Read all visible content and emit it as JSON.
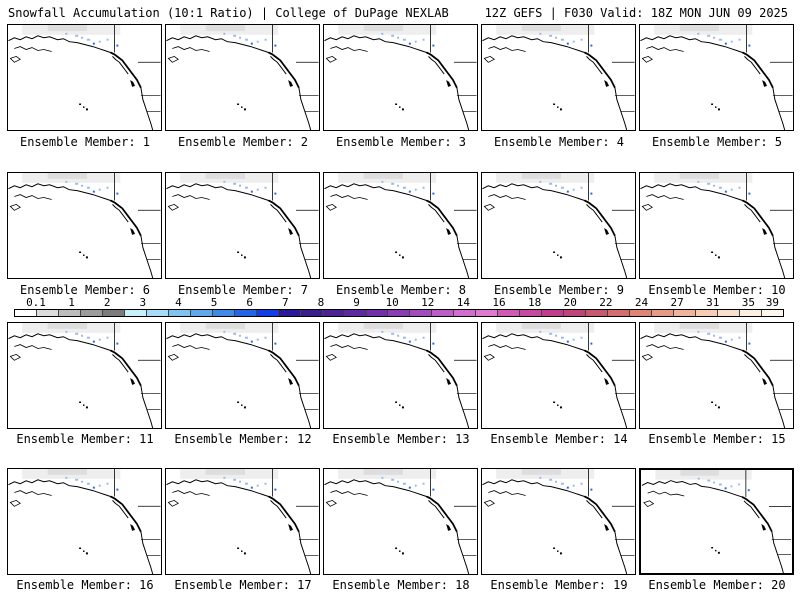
{
  "header": {
    "left": "Snowfall Accumulation (10:1 Ratio) | College of DuPage NEXLAB",
    "right": "12Z GEFS | F030 Valid: 18Z MON JUN 09 2025"
  },
  "panels": [
    {
      "label": "Ensemble Member: 1"
    },
    {
      "label": "Ensemble Member: 2"
    },
    {
      "label": "Ensemble Member: 3"
    },
    {
      "label": "Ensemble Member: 4"
    },
    {
      "label": "Ensemble Member: 5"
    },
    {
      "label": "Ensemble Member: 6"
    },
    {
      "label": "Ensemble Member: 7"
    },
    {
      "label": "Ensemble Member: 8"
    },
    {
      "label": "Ensemble Member: 9"
    },
    {
      "label": "Ensemble Member: 10"
    },
    {
      "label": "Ensemble Member: 11"
    },
    {
      "label": "Ensemble Member: 12"
    },
    {
      "label": "Ensemble Member: 13"
    },
    {
      "label": "Ensemble Member: 14"
    },
    {
      "label": "Ensemble Member: 15"
    },
    {
      "label": "Ensemble Member: 16"
    },
    {
      "label": "Ensemble Member: 17"
    },
    {
      "label": "Ensemble Member: 18"
    },
    {
      "label": "Ensemble Member: 19"
    },
    {
      "label": "Ensemble Member: 20",
      "selected": true
    }
  ],
  "colorbar": {
    "labels": [
      "0.1",
      "1",
      "2",
      "3",
      "4",
      "5",
      "6",
      "7",
      "8",
      "9",
      "10",
      "12",
      "14",
      "16",
      "18",
      "20",
      "22",
      "24",
      "27",
      "31",
      "35",
      "39"
    ],
    "colors": [
      "#ffffff",
      "#dcdcdc",
      "#bcbcbc",
      "#9c9c9c",
      "#7c7c7c",
      "#c8f0f8",
      "#a6dcf5",
      "#80c2f0",
      "#5fa8ec",
      "#3f8ae6",
      "#2266e6",
      "#0f40e6",
      "#2a1a9a",
      "#3a1e8c",
      "#4c2294",
      "#5e28a0",
      "#7030aa",
      "#8a3cb4",
      "#a24cbe",
      "#bc5cc8",
      "#d46cd0",
      "#e07ad0",
      "#d05ab4",
      "#c84aa0",
      "#c03c8c",
      "#c04478",
      "#c85870",
      "#d46c70",
      "#e08478",
      "#e89a88",
      "#f0b49c",
      "#f6ccb4",
      "#fae0cc",
      "#fdeee2",
      "#fff6ee"
    ]
  }
}
